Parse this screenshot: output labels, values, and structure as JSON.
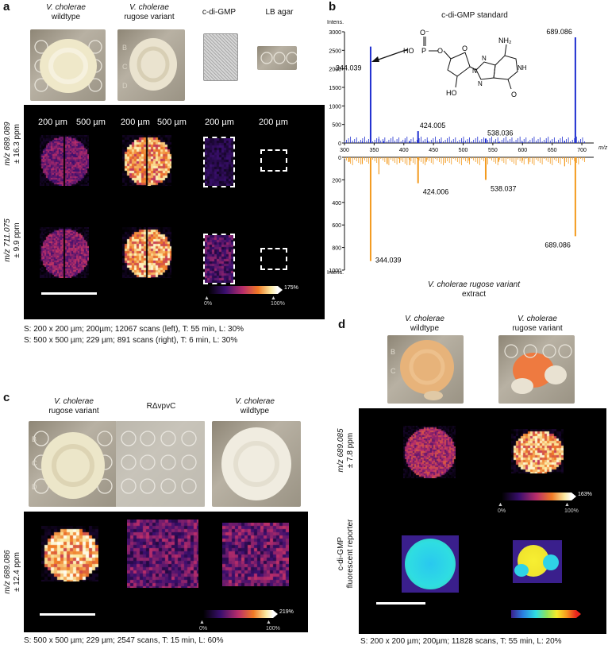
{
  "panel_a": {
    "label": "a",
    "photo_captions": [
      {
        "line1": "V. cholerae",
        "line2": "wildtype"
      },
      {
        "line1": "V. cholerae",
        "line2": "rugose variant"
      },
      {
        "line1": "c-di-GMP",
        "line2": ""
      },
      {
        "line1": "LB agar",
        "line2": ""
      }
    ],
    "scale_labels": [
      "200 µm",
      "500 µm",
      "200 µm",
      "500 µm",
      "200 µm",
      "200 µm"
    ],
    "row1_label_a": "m/z 689.089",
    "row1_label_b": "± 16.3 ppm",
    "row2_label_a": "m/z 711.075",
    "row2_label_b": "± 9.9 ppm",
    "colorbar_max": "175%",
    "colorbar_0": "0%",
    "colorbar_100": "100%",
    "scan_line1": "S: 200 x 200 µm; 200µm; 12067 scans (left), T: 55 min, L: 30%",
    "scan_line2": "S: 500 x 500 µm; 229 µm; 891 scans (right), T: 6 min, L: 30%"
  },
  "panel_b": {
    "label": "b",
    "title": "c-di-GMP standard",
    "bottom_title_line1": "V. cholerae rugose variant",
    "bottom_title_line2": "extract",
    "top_axis_label": "Intens.",
    "bottom_axis_label": "Intens.",
    "x_unit": "m/z",
    "structure_labels": {
      "o_minus": "O⁻",
      "ho": "HO",
      "p": "P",
      "o1": "O",
      "o2": "O",
      "nh2": "NH₂",
      "oh": "HO",
      "n1": "N",
      "n2": "N",
      "n3": "N",
      "nh": "NH",
      "o3": "O",
      "o4": "O"
    }
  },
  "chart_data": [
    {
      "type": "bar",
      "title": "c-di-GMP standard",
      "xlabel": "m/z",
      "ylabel": "Intens.",
      "xlim": [
        300,
        720
      ],
      "ylim": [
        0,
        3000
      ],
      "x_ticks": [
        300,
        350,
        400,
        450,
        500,
        550,
        600,
        650,
        700
      ],
      "y_ticks": [
        0,
        500,
        1000,
        1500,
        2000,
        2500,
        3000
      ],
      "color": "#1f2fd0",
      "peaks": [
        {
          "x": 344.039,
          "y": 2600,
          "label": "344.039"
        },
        {
          "x": 424.005,
          "y": 320,
          "label": "424.005"
        },
        {
          "x": 538.036,
          "y": 120,
          "label": "538.036"
        },
        {
          "x": 689.086,
          "y": 2850,
          "label": "689.086"
        },
        {
          "x": 330,
          "y": 40
        },
        {
          "x": 358,
          "y": 110
        },
        {
          "x": 366,
          "y": 50
        },
        {
          "x": 402,
          "y": 70
        },
        {
          "x": 410,
          "y": 40
        },
        {
          "x": 440,
          "y": 60
        },
        {
          "x": 462,
          "y": 30
        },
        {
          "x": 500,
          "y": 40
        },
        {
          "x": 560,
          "y": 25
        },
        {
          "x": 600,
          "y": 30
        },
        {
          "x": 640,
          "y": 35
        },
        {
          "x": 671,
          "y": 60
        }
      ]
    },
    {
      "type": "bar",
      "title": "V. cholerae rugose variant extract",
      "xlabel": "m/z",
      "ylabel": "Intens.",
      "xlim": [
        300,
        720
      ],
      "ylim": [
        0,
        1000
      ],
      "y_ticks": [
        0,
        200,
        400,
        600,
        800,
        1000
      ],
      "inverted": true,
      "color": "#f39a1e",
      "peaks": [
        {
          "x": 344.039,
          "y": 920,
          "label": "344.039"
        },
        {
          "x": 424.006,
          "y": 230,
          "label": "424.006"
        },
        {
          "x": 538.037,
          "y": 200,
          "label": "538.037"
        },
        {
          "x": 689.086,
          "y": 700,
          "label": "689.086"
        },
        {
          "x": 308,
          "y": 40
        },
        {
          "x": 330,
          "y": 60
        },
        {
          "x": 358,
          "y": 150
        },
        {
          "x": 372,
          "y": 60
        },
        {
          "x": 393,
          "y": 50
        },
        {
          "x": 410,
          "y": 70
        },
        {
          "x": 438,
          "y": 40
        },
        {
          "x": 470,
          "y": 50
        },
        {
          "x": 510,
          "y": 30
        },
        {
          "x": 560,
          "y": 40
        },
        {
          "x": 600,
          "y": 30
        },
        {
          "x": 610,
          "y": 60
        },
        {
          "x": 671,
          "y": 80
        }
      ]
    }
  ],
  "panel_c": {
    "label": "c",
    "photo_captions": [
      {
        "line1": "V. cholerae",
        "line2": "rugose variant"
      },
      {
        "line1": "RΔvpvC",
        "line2": ""
      },
      {
        "line1": "V. cholerae",
        "line2": "wildtype"
      }
    ],
    "row_label_a": "m/z 689.086",
    "row_label_b": "± 12.4 ppm",
    "colorbar_max": "219%",
    "colorbar_0": "0%",
    "colorbar_100": "100%",
    "scan_line": "S: 500 x 500 µm; 229 µm; 2547 scans, T: 15 min, L: 60%"
  },
  "panel_d": {
    "label": "d",
    "photo_captions": [
      {
        "line1": "V. cholerae",
        "line2": "wildtype"
      },
      {
        "line1": "V. cholerae",
        "line2": "rugose variant"
      }
    ],
    "row1_label_a": "m/z 689.085",
    "row1_label_b": "± 7.8 ppm",
    "row2_label_a": "c-di-GMP",
    "row2_label_b": "fluorescent reporter",
    "colorbar_max": "163%",
    "colorbar_0": "0%",
    "colorbar_100": "100%",
    "scan_line": "S: 200 x 200 µm; 200µm; 11828 scans, T: 55 min, L: 20%"
  },
  "well_letters": [
    "B",
    "C",
    "D"
  ]
}
